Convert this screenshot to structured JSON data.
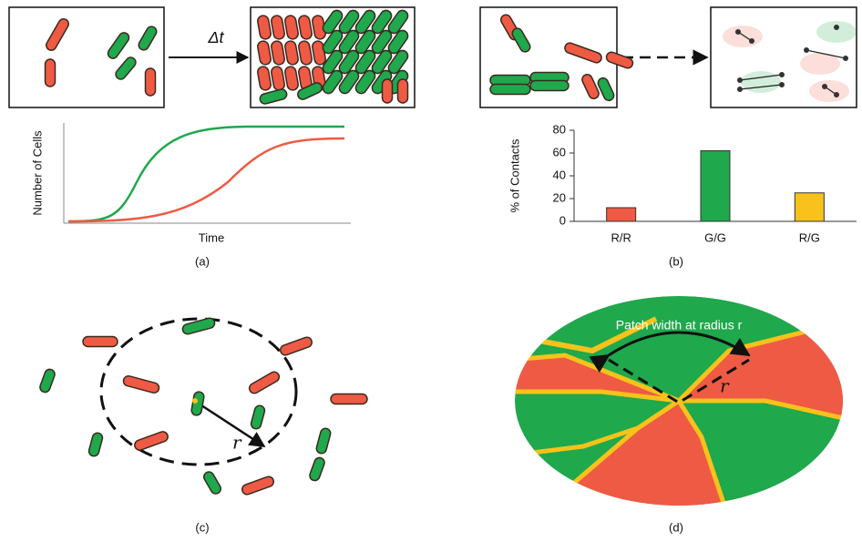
{
  "labels": {
    "delta_t": "Δt",
    "a_ylabel": "Number of Cells",
    "a_xlabel": "Time",
    "a": "(a)",
    "b": "(b)",
    "c": "(c)",
    "d": "(d)",
    "c_radius": "r",
    "d_radius": "r",
    "d_annotation": "Patch width at radius r"
  },
  "chart_data": {
    "type": "bar",
    "ylabel": "% of Contacts",
    "categories": [
      "R/R",
      "G/G",
      "R/G"
    ],
    "values": [
      12,
      62,
      25
    ],
    "colors": [
      "#ef5a44",
      "#1fa84c",
      "#f7c21b"
    ],
    "ylim": [
      0,
      80
    ],
    "yticks": [
      0,
      20,
      40,
      60,
      80
    ]
  }
}
